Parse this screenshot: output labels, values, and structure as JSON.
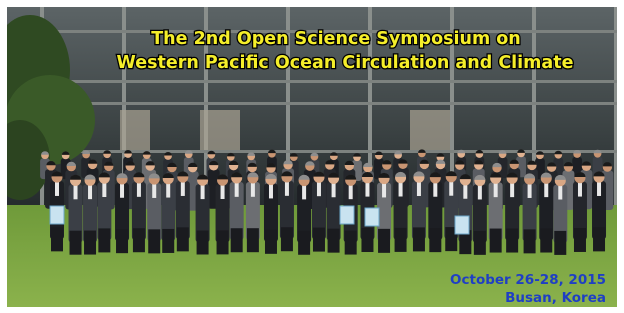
{
  "banner": {
    "title_lines": [
      "The 2nd Open Science Symposium on",
      "Western Pacific Ocean Circulation and Climate"
    ],
    "date": "October 26-28, 2015",
    "location": "Busan, Korea"
  }
}
